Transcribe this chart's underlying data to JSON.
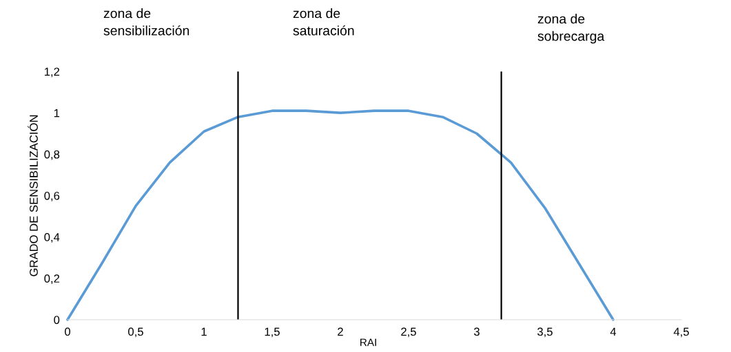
{
  "chart_data": {
    "type": "line",
    "xlabel": "RAI",
    "ylabel": "GRADO DE SENSIBILIZACIÓN",
    "x": [
      0,
      0.25,
      0.5,
      0.75,
      1,
      1.25,
      1.5,
      1.75,
      2,
      2.25,
      2.5,
      2.75,
      3,
      3.25,
      3.5,
      3.75,
      4
    ],
    "series": [
      {
        "color": "#5b9bd5",
        "values": [
          0,
          0.27,
          0.55,
          0.76,
          0.91,
          0.98,
          1.01,
          1.01,
          1.0,
          1.01,
          1.01,
          0.98,
          0.9,
          0.76,
          0.54,
          0.27,
          0
        ]
      }
    ],
    "xlim": [
      0,
      4.5
    ],
    "ylim": [
      0,
      1.2
    ],
    "xticks": [
      0,
      {
        "value": 0.5,
        "label": "0,5"
      },
      1,
      {
        "value": 1.5,
        "label": "1,5"
      },
      2,
      {
        "value": 2.5,
        "label": "2,5"
      },
      3,
      {
        "value": 3.5,
        "label": "3,5"
      },
      4,
      {
        "value": 4.5,
        "label": "4,5"
      }
    ],
    "yticks": [
      0,
      {
        "value": 0.2,
        "label": "0,2"
      },
      {
        "value": 0.4,
        "label": "0,4"
      },
      {
        "value": 0.6,
        "label": "0,6"
      },
      {
        "value": 0.8,
        "label": "0,8"
      },
      1,
      {
        "value": 1.2,
        "label": "1,2"
      }
    ],
    "ref_lines": [
      {
        "axis": "x",
        "value": 1.25,
        "color": "#000000"
      },
      {
        "axis": "x",
        "value": 3.18,
        "color": "#000000"
      }
    ],
    "annotations": [
      "zona de\nsensibilización",
      "zona de\nsaturación",
      "zona de\nsobrecarga"
    ],
    "grid": false,
    "legend": false,
    "marker": "none",
    "line_style": "solid"
  }
}
